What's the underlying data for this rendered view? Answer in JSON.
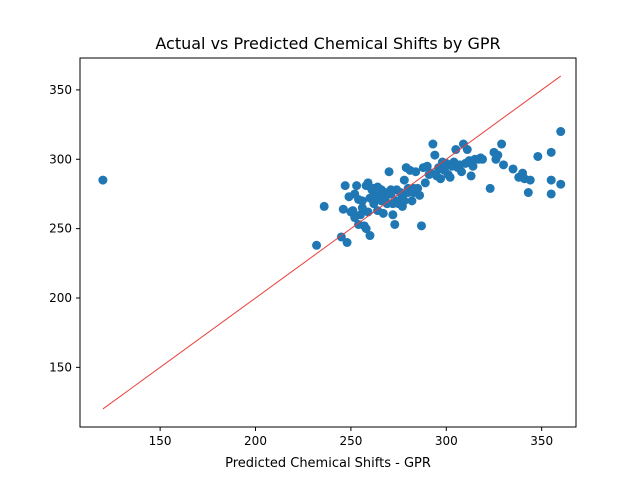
{
  "chart_data": {
    "type": "scatter",
    "title": "Actual vs Predicted Chemical Shifts by GPR",
    "xlabel": "Predicted Chemical Shifts - GPR",
    "ylabel": "",
    "xlim": [
      108,
      368
    ],
    "ylim": [
      107,
      373
    ],
    "xticks": [
      150,
      200,
      250,
      300,
      350
    ],
    "yticks": [
      150,
      200,
      250,
      300,
      350
    ],
    "grid": false,
    "colors": {
      "points": "#1f77b4",
      "reference_line": "#e8403c",
      "axes": "#000000"
    },
    "reference_line": {
      "x": [
        120,
        360
      ],
      "y": [
        120,
        360
      ]
    },
    "series": [
      {
        "points": [
          [
            120,
            285
          ],
          [
            232,
            238
          ],
          [
            236,
            266
          ],
          [
            245,
            244
          ],
          [
            248,
            240
          ],
          [
            246,
            264
          ],
          [
            247,
            281
          ],
          [
            249,
            273
          ],
          [
            251,
            263
          ],
          [
            252,
            275
          ],
          [
            253,
            281
          ],
          [
            254,
            253
          ],
          [
            255,
            260
          ],
          [
            256,
            270
          ],
          [
            257,
            252
          ],
          [
            258,
            281
          ],
          [
            259,
            262
          ],
          [
            260,
            245
          ],
          [
            261,
            278
          ],
          [
            262,
            268
          ],
          [
            263,
            273
          ],
          [
            264,
            280
          ],
          [
            265,
            274
          ],
          [
            266,
            278
          ],
          [
            267,
            261
          ],
          [
            268,
            276
          ],
          [
            269,
            268
          ],
          [
            270,
            291
          ],
          [
            271,
            278
          ],
          [
            272,
            260
          ],
          [
            273,
            253
          ],
          [
            274,
            270
          ],
          [
            275,
            268
          ],
          [
            276,
            276
          ],
          [
            277,
            273
          ],
          [
            278,
            285
          ],
          [
            279,
            294
          ],
          [
            280,
            279
          ],
          [
            281,
            292
          ],
          [
            282,
            270
          ],
          [
            283,
            276
          ],
          [
            284,
            291
          ],
          [
            285,
            279
          ],
          [
            286,
            274
          ],
          [
            287,
            252
          ],
          [
            288,
            294
          ],
          [
            289,
            283
          ],
          [
            290,
            295
          ],
          [
            291,
            289
          ],
          [
            292,
            290
          ],
          [
            293,
            311
          ],
          [
            294,
            303
          ],
          [
            295,
            288
          ],
          [
            296,
            294
          ],
          [
            297,
            286
          ],
          [
            298,
            298
          ],
          [
            299,
            292
          ],
          [
            300,
            297
          ],
          [
            301,
            289
          ],
          [
            302,
            287
          ],
          [
            303,
            295
          ],
          [
            304,
            298
          ],
          [
            305,
            307
          ],
          [
            306,
            294
          ],
          [
            307,
            296
          ],
          [
            308,
            291
          ],
          [
            309,
            311
          ],
          [
            310,
            297
          ],
          [
            311,
            307
          ],
          [
            312,
            299
          ],
          [
            313,
            288
          ],
          [
            314,
            295
          ],
          [
            315,
            300
          ],
          [
            317,
            300
          ],
          [
            318,
            301
          ],
          [
            319,
            300
          ],
          [
            323,
            279
          ],
          [
            325,
            305
          ],
          [
            326,
            300
          ],
          [
            327,
            303
          ],
          [
            329,
            311
          ],
          [
            330,
            296
          ],
          [
            335,
            293
          ],
          [
            338,
            287
          ],
          [
            340,
            290
          ],
          [
            341,
            286
          ],
          [
            343,
            276
          ],
          [
            344,
            285
          ],
          [
            348,
            302
          ],
          [
            355,
            305
          ],
          [
            355,
            285
          ],
          [
            355,
            275
          ],
          [
            360,
            282
          ],
          [
            360,
            320
          ],
          [
            250,
            262
          ],
          [
            256,
            265
          ],
          [
            262,
            279
          ],
          [
            268,
            272
          ],
          [
            274,
            278
          ],
          [
            280,
            276
          ],
          [
            259,
            283
          ],
          [
            252,
            258
          ],
          [
            264,
            263
          ],
          [
            271,
            275
          ],
          [
            277,
            266
          ],
          [
            283,
            279
          ],
          [
            258,
            250
          ],
          [
            266,
            270
          ],
          [
            260,
            272
          ],
          [
            254,
            271
          ],
          [
            272,
            268
          ],
          [
            278,
            270
          ],
          [
            296,
            293
          ],
          [
            302,
            296
          ]
        ]
      }
    ]
  }
}
